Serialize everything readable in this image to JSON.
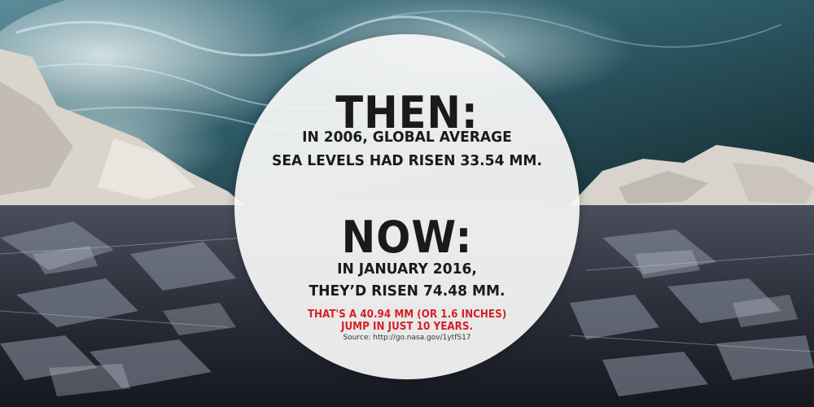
{
  "then": {
    "heading": "THEN:",
    "line1": "IN 2006, GLOBAL AVERAGE",
    "line2": "SEA LEVELS HAD RISEN 33.54 MM."
  },
  "now": {
    "heading": "NOW:",
    "line1": "IN JANUARY 2016,",
    "line2": "THEY’D RISEN 74.48 MM."
  },
  "highlight": {
    "line1": "THAT'S A 40.94 MM (OR 1.6 INCHES)",
    "line2": "JUMP IN JUST 10 YEARS."
  },
  "source": "Source: http://go.nasa.gov/1ytfS17",
  "colors": {
    "highlight": "#d32226",
    "text": "#1a1a1a",
    "circle": "#f5f5f5"
  }
}
